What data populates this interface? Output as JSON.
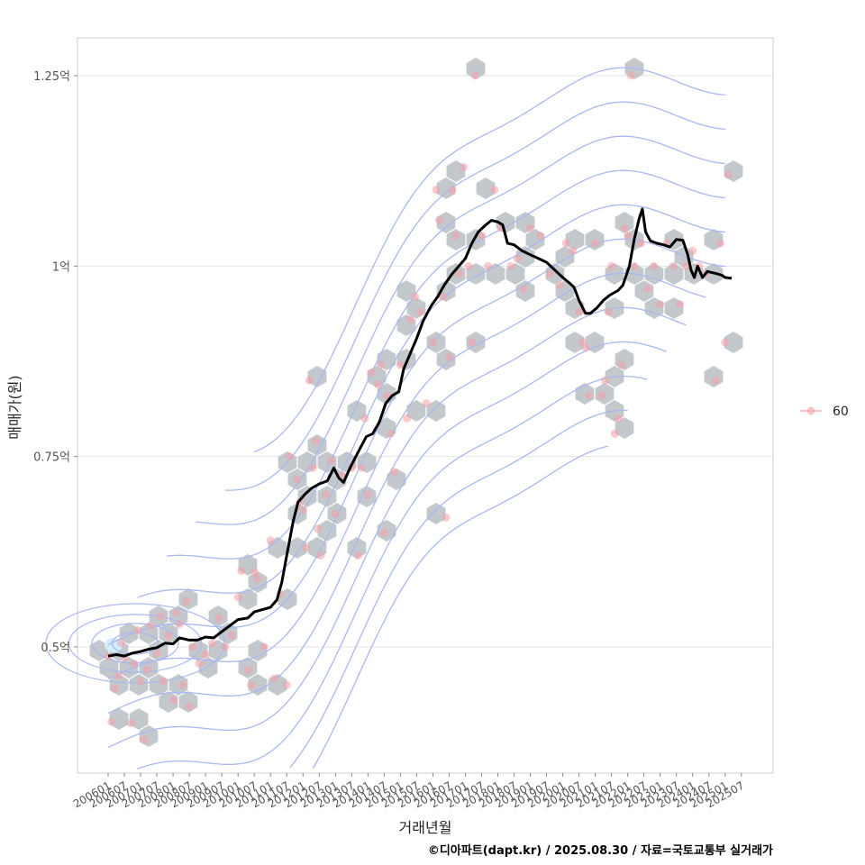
{
  "chart_data": {
    "type": "line",
    "title": "",
    "xlabel": "거래년월",
    "ylabel": "매매가(원)",
    "caption": "©디아파트(dapt.kr) / 2025.08.30 / 자료=국토교통부 실거래가",
    "x_ticks": [
      "200601",
      "200607",
      "200701",
      "200707",
      "200801",
      "200807",
      "200901",
      "200907",
      "201001",
      "201007",
      "201101",
      "201107",
      "201201",
      "201207",
      "201301",
      "201307",
      "201401",
      "201407",
      "201501",
      "201507",
      "201601",
      "201607",
      "201701",
      "201707",
      "201801",
      "201807",
      "201901",
      "201907",
      "202001",
      "202007",
      "202101",
      "202107",
      "202201",
      "202207",
      "202301",
      "202307",
      "202401",
      "202407",
      "202501",
      "202507"
    ],
    "y_ticks": [
      {
        "value": 0.5,
        "label": "0.5억"
      },
      {
        "value": 0.75,
        "label": "0.75억"
      },
      {
        "value": 1.0,
        "label": "1억"
      },
      {
        "value": 1.25,
        "label": "1.25억"
      }
    ],
    "ylim": [
      0.33,
      1.3
    ],
    "xlim": [
      2005.7,
      2025.85
    ],
    "grid": true,
    "legend": {
      "position": "right",
      "entries": [
        {
          "label": "60",
          "color": "#f4a0a8"
        }
      ]
    },
    "colors": {
      "line": "#000000",
      "points": "#f4a0a8",
      "hexbin": "#b8bec4",
      "contour": "#a9b8ee",
      "density_peak": "#d4ecff"
    },
    "series": [
      {
        "kind": "moving-average-line",
        "points": [
          [
            2006.0,
            0.488
          ],
          [
            2006.25,
            0.49
          ],
          [
            2006.5,
            0.488
          ],
          [
            2006.75,
            0.492
          ],
          [
            2007.0,
            0.494
          ],
          [
            2007.25,
            0.497
          ],
          [
            2007.5,
            0.499
          ],
          [
            2007.75,
            0.505
          ],
          [
            2008.0,
            0.504
          ],
          [
            2008.2,
            0.512
          ],
          [
            2008.5,
            0.509
          ],
          [
            2008.75,
            0.509
          ],
          [
            2009.0,
            0.513
          ],
          [
            2009.25,
            0.512
          ],
          [
            2009.5,
            0.52
          ],
          [
            2009.75,
            0.528
          ],
          [
            2010.0,
            0.536
          ],
          [
            2010.3,
            0.538
          ],
          [
            2010.5,
            0.546
          ],
          [
            2010.75,
            0.549
          ],
          [
            2011.0,
            0.552
          ],
          [
            2011.2,
            0.562
          ],
          [
            2011.35,
            0.585
          ],
          [
            2011.5,
            0.62
          ],
          [
            2011.7,
            0.665
          ],
          [
            2011.85,
            0.69
          ],
          [
            2012.05,
            0.7
          ],
          [
            2012.25,
            0.708
          ],
          [
            2012.5,
            0.714
          ],
          [
            2012.75,
            0.718
          ],
          [
            2012.95,
            0.735
          ],
          [
            2013.1,
            0.722
          ],
          [
            2013.25,
            0.716
          ],
          [
            2013.45,
            0.735
          ],
          [
            2013.75,
            0.76
          ],
          [
            2013.95,
            0.776
          ],
          [
            2014.15,
            0.78
          ],
          [
            2014.35,
            0.795
          ],
          [
            2014.55,
            0.82
          ],
          [
            2014.75,
            0.83
          ],
          [
            2014.95,
            0.835
          ],
          [
            2015.1,
            0.865
          ],
          [
            2015.25,
            0.88
          ],
          [
            2015.5,
            0.905
          ],
          [
            2015.7,
            0.928
          ],
          [
            2015.95,
            0.948
          ],
          [
            2016.15,
            0.96
          ],
          [
            2016.35,
            0.975
          ],
          [
            2016.6,
            0.99
          ],
          [
            2016.8,
            1.0
          ],
          [
            2017.0,
            1.01
          ],
          [
            2017.2,
            1.03
          ],
          [
            2017.4,
            1.045
          ],
          [
            2017.6,
            1.053
          ],
          [
            2017.8,
            1.06
          ],
          [
            2018.0,
            1.058
          ],
          [
            2018.15,
            1.054
          ],
          [
            2018.3,
            1.03
          ],
          [
            2018.5,
            1.028
          ],
          [
            2018.75,
            1.02
          ],
          [
            2019.0,
            1.015
          ],
          [
            2019.25,
            1.01
          ],
          [
            2019.5,
            1.005
          ],
          [
            2019.75,
            0.995
          ],
          [
            2020.0,
            0.985
          ],
          [
            2020.2,
            0.978
          ],
          [
            2020.35,
            0.972
          ],
          [
            2020.5,
            0.955
          ],
          [
            2020.7,
            0.938
          ],
          [
            2020.85,
            0.938
          ],
          [
            2021.05,
            0.945
          ],
          [
            2021.25,
            0.955
          ],
          [
            2021.45,
            0.962
          ],
          [
            2021.7,
            0.968
          ],
          [
            2021.85,
            0.975
          ],
          [
            2022.05,
            1.0
          ],
          [
            2022.2,
            1.035
          ],
          [
            2022.35,
            1.062
          ],
          [
            2022.45,
            1.075
          ],
          [
            2022.55,
            1.045
          ],
          [
            2022.7,
            1.033
          ],
          [
            2022.9,
            1.03
          ],
          [
            2023.1,
            1.028
          ],
          [
            2023.3,
            1.025
          ],
          [
            2023.5,
            1.035
          ],
          [
            2023.7,
            1.034
          ],
          [
            2023.85,
            1.015
          ],
          [
            2023.95,
            0.995
          ],
          [
            2024.05,
            0.985
          ],
          [
            2024.15,
            1.0
          ],
          [
            2024.3,
            0.985
          ],
          [
            2024.45,
            0.993
          ],
          [
            2024.75,
            0.99
          ],
          [
            2024.9,
            0.988
          ],
          [
            2025.0,
            0.985
          ],
          [
            2025.2,
            0.984
          ]
        ]
      },
      {
        "kind": "points",
        "name": "60",
        "points": [
          [
            2006.0,
            0.488
          ],
          [
            2006.1,
            0.402
          ],
          [
            2006.2,
            0.445
          ],
          [
            2006.3,
            0.462
          ],
          [
            2006.4,
            0.505
          ],
          [
            2006.5,
            0.486
          ],
          [
            2006.7,
            0.4
          ],
          [
            2006.8,
            0.478
          ],
          [
            2006.9,
            0.522
          ],
          [
            2007.0,
            0.455
          ],
          [
            2007.1,
            0.378
          ],
          [
            2007.2,
            0.47
          ],
          [
            2007.3,
            0.528
          ],
          [
            2007.5,
            0.492
          ],
          [
            2007.6,
            0.54
          ],
          [
            2007.7,
            0.455
          ],
          [
            2007.85,
            0.515
          ],
          [
            2008.0,
            0.43
          ],
          [
            2008.1,
            0.545
          ],
          [
            2008.2,
            0.53
          ],
          [
            2008.3,
            0.45
          ],
          [
            2008.4,
            0.56
          ],
          [
            2008.5,
            0.422
          ],
          [
            2008.6,
            0.5
          ],
          [
            2008.8,
            0.478
          ],
          [
            2009.0,
            0.49
          ],
          [
            2009.2,
            0.505
          ],
          [
            2009.4,
            0.538
          ],
          [
            2009.6,
            0.5
          ],
          [
            2009.8,
            0.515
          ],
          [
            2010.0,
            0.565
          ],
          [
            2010.1,
            0.6
          ],
          [
            2010.3,
            0.47
          ],
          [
            2010.4,
            0.45
          ],
          [
            2010.5,
            0.598
          ],
          [
            2010.6,
            0.59
          ],
          [
            2010.8,
            0.5
          ],
          [
            2011.0,
            0.64
          ],
          [
            2011.1,
            0.458
          ],
          [
            2011.3,
            0.57
          ],
          [
            2011.5,
            0.45
          ],
          [
            2011.6,
            0.75
          ],
          [
            2011.8,
            0.72
          ],
          [
            2011.9,
            0.69
          ],
          [
            2012.0,
            0.68
          ],
          [
            2012.1,
            0.63
          ],
          [
            2012.2,
            0.85
          ],
          [
            2012.3,
            0.735
          ],
          [
            2012.4,
            0.77
          ],
          [
            2012.45,
            0.655
          ],
          [
            2012.55,
            0.62
          ],
          [
            2012.7,
            0.7
          ],
          [
            2012.85,
            0.745
          ],
          [
            2013.0,
            0.675
          ],
          [
            2013.2,
            0.725
          ],
          [
            2013.5,
            0.735
          ],
          [
            2013.7,
            0.62
          ],
          [
            2013.8,
            0.735
          ],
          [
            2013.9,
            0.8
          ],
          [
            2014.0,
            0.7
          ],
          [
            2014.1,
            0.86
          ],
          [
            2014.3,
            0.845
          ],
          [
            2014.4,
            0.87
          ],
          [
            2014.5,
            0.65
          ],
          [
            2014.6,
            0.83
          ],
          [
            2014.7,
            0.78
          ],
          [
            2014.8,
            0.73
          ],
          [
            2015.0,
            0.87
          ],
          [
            2015.2,
            0.8
          ],
          [
            2015.3,
            0.93
          ],
          [
            2015.45,
            0.96
          ],
          [
            2015.6,
            0.94
          ],
          [
            2015.8,
            0.82
          ],
          [
            2016.0,
            0.9
          ],
          [
            2016.1,
            1.1
          ],
          [
            2016.2,
            1.06
          ],
          [
            2016.3,
            0.96
          ],
          [
            2016.4,
            0.67
          ],
          [
            2016.5,
            0.88
          ],
          [
            2016.6,
            1.1
          ],
          [
            2016.7,
            1.04
          ],
          [
            2016.8,
            0.99
          ],
          [
            2016.95,
            1.13
          ],
          [
            2017.1,
            1.0
          ],
          [
            2017.2,
            0.9
          ],
          [
            2017.3,
            1.25
          ],
          [
            2017.5,
            1.04
          ],
          [
            2017.7,
            1.0
          ],
          [
            2017.9,
            1.1
          ],
          [
            2018.1,
            1.05
          ],
          [
            2018.4,
            1.0
          ],
          [
            2018.6,
            1.01
          ],
          [
            2018.8,
            0.97
          ],
          [
            2019.0,
            1.05
          ],
          [
            2019.3,
            1.04
          ],
          [
            2019.6,
            0.99
          ],
          [
            2019.9,
            0.975
          ],
          [
            2020.1,
            1.03
          ],
          [
            2020.3,
            1.02
          ],
          [
            2020.5,
            0.94
          ],
          [
            2020.6,
            0.9
          ],
          [
            2020.7,
            0.893
          ],
          [
            2020.8,
            0.83
          ],
          [
            2021.0,
            1.03
          ],
          [
            2021.2,
            0.83
          ],
          [
            2021.3,
            0.85
          ],
          [
            2021.4,
            0.94
          ],
          [
            2021.5,
            1.0
          ],
          [
            2021.6,
            0.78
          ],
          [
            2021.7,
            0.8
          ],
          [
            2021.8,
            0.87
          ],
          [
            2021.9,
            1.05
          ],
          [
            2022.0,
            1.04
          ],
          [
            2022.1,
            1.25
          ],
          [
            2022.2,
            1.0
          ],
          [
            2022.4,
            1.03
          ],
          [
            2022.6,
            0.97
          ],
          [
            2022.8,
            1.0
          ],
          [
            2023.0,
            0.95
          ],
          [
            2023.2,
            1.03
          ],
          [
            2023.4,
            1.0
          ],
          [
            2023.6,
            0.95
          ],
          [
            2023.8,
            1.0
          ],
          [
            2024.0,
            1.02
          ],
          [
            2024.2,
            1.0
          ],
          [
            2024.4,
            0.99
          ],
          [
            2024.7,
            0.85
          ],
          [
            2024.85,
            1.03
          ],
          [
            2025.0,
            0.9
          ],
          [
            2025.1,
            1.12
          ]
        ]
      }
    ]
  }
}
